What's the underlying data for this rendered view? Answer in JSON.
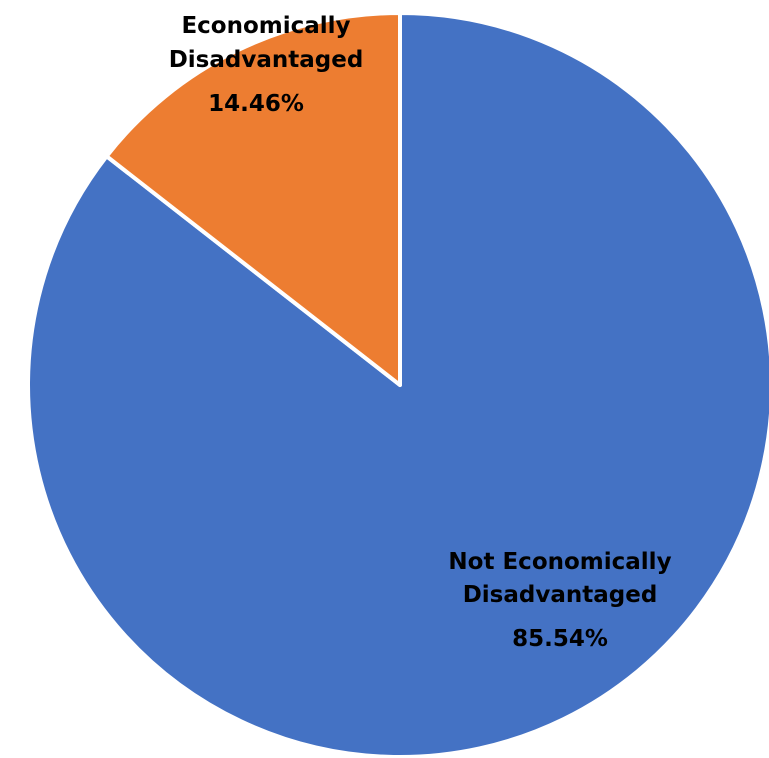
{
  "chart_data": {
    "type": "pie",
    "title": "",
    "legend": "none",
    "start_angle_deg": 0,
    "direction": "clockwise",
    "slices": [
      {
        "name": "Not Economically Disadvantaged",
        "label_lines": [
          "Not Economically",
          "Disadvantaged"
        ],
        "value": 85.54,
        "value_label": "85.54%",
        "color": "#4472C4"
      },
      {
        "name": "Economically Disadvantaged",
        "label_lines": [
          "Economically",
          "Disadvantaged"
        ],
        "value": 14.46,
        "value_label": "14.46%",
        "color": "#ED7D31"
      }
    ]
  }
}
